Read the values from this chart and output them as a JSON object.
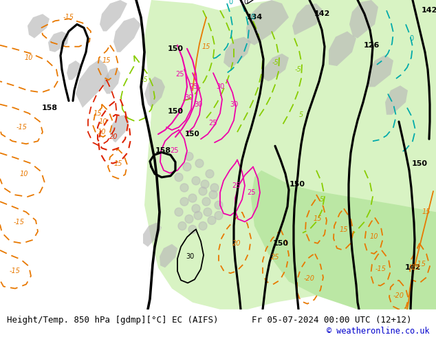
{
  "title_left": "Height/Temp. 850 hPa [gdmp][°C] EC (AIFS)",
  "title_right": "Fr 05-07-2024 00:00 UTC (12+12)",
  "copyright": "© weatheronline.co.uk",
  "fig_width": 6.34,
  "fig_height": 4.9,
  "dpi": 100,
  "bg_color": "#f0f0f0",
  "bottom_bar_color": "#ffffff",
  "bottom_bar_height": 0.082,
  "title_fontsize": 9.0,
  "copyright_fontsize": 8.5,
  "copyright_color": "#0000cc",
  "title_color": "#000000",
  "green_fill": "#b8e8a0",
  "gray_fill": "#b8b8b8",
  "black_lw": 2.3,
  "temp_lw": 1.3
}
